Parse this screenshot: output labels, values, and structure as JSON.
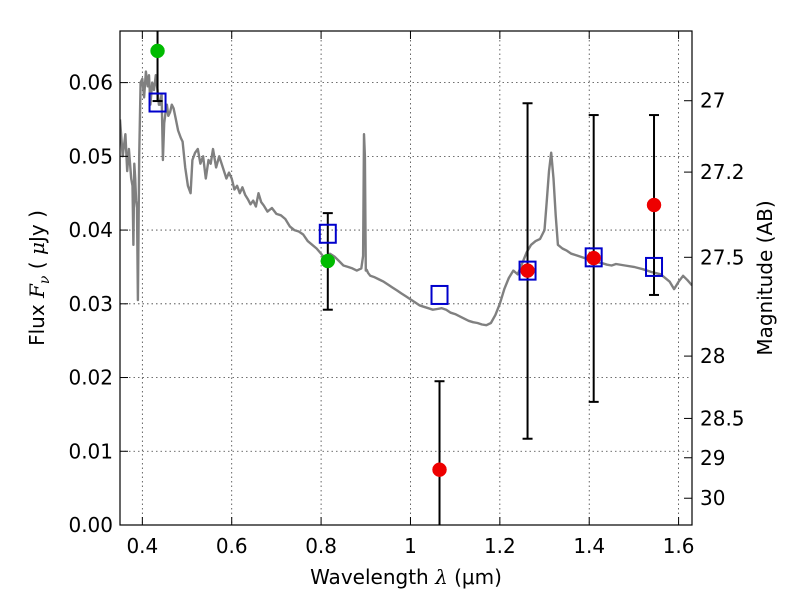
{
  "chart_data": {
    "type": "scatter",
    "title": "",
    "xlabel": "Wavelength  λ (μm)",
    "xlabel_parts": {
      "text": "Wavelength  ",
      "symbol": "λ",
      "unit": " (μm)"
    },
    "ylabel": "Flux  F_ν  ( μJy )",
    "ylabel_parts": {
      "text": "Flux  ",
      "symbol": "F",
      "subscript": "ν",
      "unit": "  ( μJy )",
      "unit_open": "  (  ",
      "unit_sym": "μ",
      "unit_rest": "Jy  )"
    },
    "y2label": "Magnitude (AB)",
    "xlim": [
      0.35,
      1.63
    ],
    "ylim": [
      0.0,
      0.067
    ],
    "grid": true,
    "x_ticks": [
      {
        "value": 0.4,
        "label": "0.4"
      },
      {
        "value": 0.6,
        "label": "0.6"
      },
      {
        "value": 0.8,
        "label": "0.8"
      },
      {
        "value": 1.0,
        "label": "1"
      },
      {
        "value": 1.2,
        "label": "1.2"
      },
      {
        "value": 1.4,
        "label": "1.4"
      },
      {
        "value": 1.6,
        "label": "1.6"
      }
    ],
    "y_ticks": [
      {
        "value": 0.0,
        "label": "0.00"
      },
      {
        "value": 0.01,
        "label": "0.01"
      },
      {
        "value": 0.02,
        "label": "0.02"
      },
      {
        "value": 0.03,
        "label": "0.03"
      },
      {
        "value": 0.04,
        "label": "0.04"
      },
      {
        "value": 0.05,
        "label": "0.05"
      },
      {
        "value": 0.06,
        "label": "0.06"
      }
    ],
    "y2_ticks": [
      {
        "value": 27.0,
        "label": "27"
      },
      {
        "value": 27.2,
        "label": "27.2"
      },
      {
        "value": 27.5,
        "label": "27.5"
      },
      {
        "value": 28.0,
        "label": "28"
      },
      {
        "value": 28.5,
        "label": "28.5"
      },
      {
        "value": 29.0,
        "label": "29"
      },
      {
        "value": 30.0,
        "label": "30"
      }
    ],
    "y2_relation": "flux = 10^((23.9 - mag)/2.5)",
    "colors": {
      "model": "#808080",
      "model_points": "#0000cc",
      "detected": "#00bb00",
      "undetected": "#ee0000",
      "errorbar": "#000000"
    },
    "series": [
      {
        "kind": "line",
        "x": [
          0.35,
          0.356,
          0.362,
          0.366,
          0.37,
          0.375,
          0.378,
          0.38,
          0.382,
          0.384,
          0.386,
          0.388,
          0.39,
          0.393,
          0.396,
          0.4,
          0.404,
          0.408,
          0.412,
          0.415,
          0.418,
          0.422,
          0.426,
          0.43,
          0.434,
          0.437,
          0.44,
          0.443,
          0.446,
          0.449,
          0.452,
          0.455,
          0.458,
          0.462,
          0.466,
          0.47,
          0.475,
          0.48,
          0.486,
          0.49,
          0.496,
          0.502,
          0.508,
          0.512,
          0.518,
          0.524,
          0.53,
          0.536,
          0.542,
          0.548,
          0.553,
          0.558,
          0.565,
          0.572,
          0.58,
          0.588,
          0.594,
          0.6,
          0.606,
          0.612,
          0.618,
          0.624,
          0.63,
          0.636,
          0.642,
          0.648,
          0.654,
          0.66,
          0.666,
          0.672,
          0.68,
          0.69,
          0.7,
          0.71,
          0.72,
          0.73,
          0.74,
          0.75,
          0.76,
          0.77,
          0.78,
          0.79,
          0.8,
          0.81,
          0.82,
          0.83,
          0.84,
          0.85,
          0.86,
          0.87,
          0.88,
          0.89,
          0.894,
          0.896,
          0.898,
          0.9,
          0.902,
          0.905,
          0.91,
          0.92,
          0.93,
          0.94,
          0.95,
          0.96,
          0.97,
          0.98,
          0.99,
          1.0,
          1.01,
          1.02,
          1.03,
          1.04,
          1.05,
          1.06,
          1.07,
          1.08,
          1.09,
          1.1,
          1.11,
          1.12,
          1.13,
          1.14,
          1.15,
          1.16,
          1.17,
          1.18,
          1.19,
          1.2,
          1.21,
          1.22,
          1.23,
          1.24,
          1.25,
          1.26,
          1.27,
          1.28,
          1.29,
          1.3,
          1.305,
          1.31,
          1.315,
          1.32,
          1.325,
          1.33,
          1.34,
          1.35,
          1.36,
          1.37,
          1.38,
          1.39,
          1.4,
          1.41,
          1.42,
          1.43,
          1.44,
          1.45,
          1.46,
          1.48,
          1.5,
          1.52,
          1.54,
          1.56,
          1.58,
          1.59,
          1.6,
          1.61,
          1.62,
          1.63
        ],
        "y": [
          0.055,
          0.05,
          0.053,
          0.048,
          0.051,
          0.047,
          0.046,
          0.038,
          0.049,
          0.047,
          0.044,
          0.043,
          0.0305,
          0.05,
          0.06,
          0.0605,
          0.058,
          0.0615,
          0.0595,
          0.061,
          0.057,
          0.06,
          0.059,
          0.061,
          0.059,
          0.057,
          0.057,
          0.0585,
          0.0495,
          0.0545,
          0.056,
          0.057,
          0.0555,
          0.056,
          0.057,
          0.0565,
          0.055,
          0.0535,
          0.0525,
          0.052,
          0.0485,
          0.046,
          0.045,
          0.0495,
          0.0505,
          0.051,
          0.049,
          0.05,
          0.047,
          0.0495,
          0.049,
          0.051,
          0.0485,
          0.05,
          0.0485,
          0.047,
          0.0478,
          0.047,
          0.0455,
          0.046,
          0.045,
          0.0458,
          0.0448,
          0.0442,
          0.0435,
          0.044,
          0.0432,
          0.045,
          0.0438,
          0.0433,
          0.0425,
          0.043,
          0.0422,
          0.042,
          0.0415,
          0.0405,
          0.04,
          0.0398,
          0.0394,
          0.0385,
          0.038,
          0.0375,
          0.0368,
          0.036,
          0.0368,
          0.0364,
          0.0358,
          0.0352,
          0.035,
          0.0348,
          0.0345,
          0.0348,
          0.0365,
          0.053,
          0.05,
          0.0345,
          0.0346,
          0.0342,
          0.0338,
          0.0336,
          0.0333,
          0.033,
          0.0326,
          0.0322,
          0.0318,
          0.0314,
          0.031,
          0.0306,
          0.0302,
          0.0298,
          0.0296,
          0.0294,
          0.0292,
          0.0293,
          0.0294,
          0.0292,
          0.0288,
          0.0286,
          0.0283,
          0.028,
          0.0277,
          0.0275,
          0.0274,
          0.0272,
          0.0271,
          0.0274,
          0.0285,
          0.03,
          0.032,
          0.0335,
          0.0345,
          0.034,
          0.0355,
          0.037,
          0.038,
          0.0385,
          0.0388,
          0.04,
          0.044,
          0.048,
          0.0505,
          0.047,
          0.042,
          0.038,
          0.0375,
          0.0372,
          0.0368,
          0.0366,
          0.0364,
          0.0362,
          0.036,
          0.0358,
          0.0356,
          0.0355,
          0.0353,
          0.0352,
          0.0354,
          0.0352,
          0.035,
          0.0347,
          0.0343,
          0.034,
          0.033,
          0.032,
          0.033,
          0.0338,
          0.0332,
          0.0325
        ]
      },
      {
        "kind": "points",
        "marker": "square",
        "x": [
          0.434,
          0.815,
          1.065,
          1.262,
          1.41,
          1.545
        ],
        "y": [
          0.0573,
          0.0395,
          0.0312,
          0.0345,
          0.0363,
          0.035
        ]
      },
      {
        "kind": "points",
        "marker": "circle",
        "x": [
          0.434,
          0.815
        ],
        "y": [
          0.0643,
          0.0358
        ]
      },
      {
        "kind": "points",
        "marker": "circle",
        "x": [
          1.065,
          1.262,
          1.41,
          1.545
        ],
        "y": [
          0.0075,
          0.0345,
          0.0362,
          0.0434
        ]
      }
    ],
    "errorbars": [
      {
        "x": 0.434,
        "low": 0.0575,
        "high": 0.068
      },
      {
        "x": 0.815,
        "low": 0.0292,
        "high": 0.0423
      },
      {
        "x": 1.065,
        "low": 0.0,
        "high": 0.0195
      },
      {
        "x": 1.262,
        "low": 0.0117,
        "high": 0.0572
      },
      {
        "x": 1.41,
        "low": 0.0167,
        "high": 0.0556
      },
      {
        "x": 1.545,
        "low": 0.0312,
        "high": 0.0556
      }
    ]
  }
}
